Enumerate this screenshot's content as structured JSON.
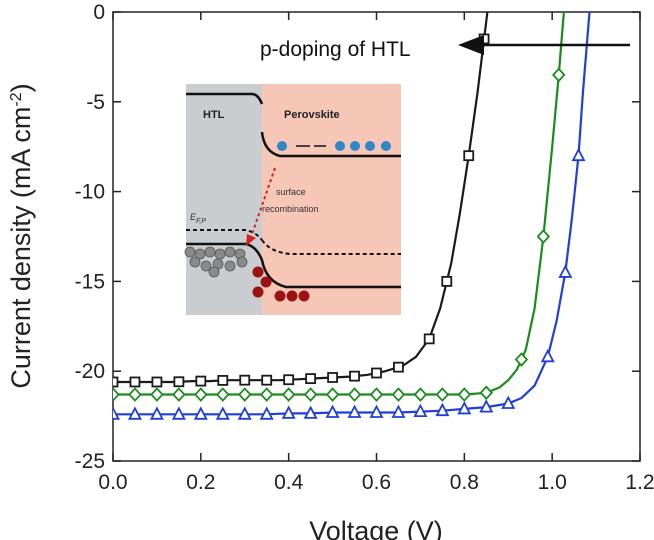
{
  "chart_data": {
    "type": "line",
    "xlabel": "Voltage (V)",
    "ylabel_main": "Current density (mA cm",
    "ylabel_sup": "-2",
    "ylabel_close": ")",
    "xlim": [
      0.0,
      1.2
    ],
    "ylim": [
      -25,
      0
    ],
    "x_ticks": [
      "0.0",
      "0.2",
      "0.4",
      "0.6",
      "0.8",
      "1.0",
      "1.2"
    ],
    "y_ticks": [
      "0",
      "-5",
      "-10",
      "-15",
      "-20",
      "-25"
    ],
    "grid": false,
    "annotation": "p-doping of HTL",
    "series": [
      {
        "color": "#1a1a1a",
        "marker": "square",
        "x": [
          0.0,
          0.02,
          0.06,
          0.1,
          0.14,
          0.18,
          0.22,
          0.26,
          0.3,
          0.34,
          0.38,
          0.42,
          0.46,
          0.5,
          0.54,
          0.58,
          0.62,
          0.66,
          0.69,
          0.72,
          0.745,
          0.77,
          0.79,
          0.81,
          0.83,
          0.845,
          0.855,
          0.865
        ],
        "y": [
          -20.6,
          -20.6,
          -20.6,
          -20.6,
          -20.6,
          -20.55,
          -20.55,
          -20.5,
          -20.5,
          -20.5,
          -20.5,
          -20.45,
          -20.4,
          -20.35,
          -20.3,
          -20.2,
          -20.0,
          -19.7,
          -19.2,
          -18.2,
          -16.5,
          -14.0,
          -11.2,
          -8.0,
          -4.5,
          -1.5,
          0.5,
          2.5
        ]
      },
      {
        "color": "#1a8c1a",
        "marker": "diamond",
        "x": [
          0.0,
          0.05,
          0.1,
          0.15,
          0.2,
          0.25,
          0.3,
          0.35,
          0.4,
          0.45,
          0.5,
          0.55,
          0.6,
          0.65,
          0.7,
          0.75,
          0.8,
          0.85,
          0.88,
          0.9,
          0.92,
          0.94,
          0.96,
          0.98,
          1.0,
          1.015,
          1.025,
          1.035
        ],
        "y": [
          -21.3,
          -21.3,
          -21.3,
          -21.3,
          -21.3,
          -21.3,
          -21.3,
          -21.3,
          -21.3,
          -21.3,
          -21.3,
          -21.3,
          -21.3,
          -21.3,
          -21.3,
          -21.3,
          -21.3,
          -21.2,
          -20.9,
          -20.5,
          -19.9,
          -18.8,
          -16.5,
          -12.5,
          -7.5,
          -3.5,
          -0.5,
          2.0
        ]
      },
      {
        "color": "#1f3fd8",
        "marker": "triangle",
        "x": [
          0.0,
          0.05,
          0.1,
          0.15,
          0.2,
          0.25,
          0.3,
          0.35,
          0.4,
          0.45,
          0.5,
          0.55,
          0.6,
          0.65,
          0.7,
          0.75,
          0.8,
          0.85,
          0.9,
          0.93,
          0.96,
          0.99,
          1.01,
          1.03,
          1.045,
          1.06,
          1.07,
          1.08,
          1.09
        ],
        "y": [
          -22.4,
          -22.4,
          -22.4,
          -22.4,
          -22.4,
          -22.4,
          -22.4,
          -22.4,
          -22.35,
          -22.35,
          -22.3,
          -22.3,
          -22.3,
          -22.3,
          -22.25,
          -22.2,
          -22.1,
          -22.0,
          -21.8,
          -21.5,
          -20.8,
          -19.2,
          -17.2,
          -14.5,
          -11.5,
          -8.0,
          -4.5,
          -1.5,
          1.5
        ]
      }
    ],
    "marker_x": {
      "square": [
        0.0,
        0.05,
        0.1,
        0.15,
        0.2,
        0.25,
        0.3,
        0.35,
        0.4,
        0.45,
        0.5,
        0.55,
        0.6,
        0.65,
        0.72,
        0.76,
        0.81,
        0.845
      ],
      "diamond": [
        0.0,
        0.05,
        0.1,
        0.15,
        0.2,
        0.25,
        0.3,
        0.35,
        0.4,
        0.45,
        0.5,
        0.55,
        0.6,
        0.65,
        0.7,
        0.75,
        0.8,
        0.85,
        0.93,
        0.98,
        1.015
      ],
      "triangle": [
        0.0,
        0.05,
        0.1,
        0.15,
        0.2,
        0.25,
        0.3,
        0.35,
        0.4,
        0.45,
        0.5,
        0.55,
        0.6,
        0.65,
        0.7,
        0.75,
        0.8,
        0.85,
        0.9,
        0.99,
        1.03,
        1.06
      ]
    }
  },
  "inset": {
    "left_label": "HTL",
    "right_label": "Perovskite",
    "recombination_label_1": "surface",
    "recombination_label_2": "recombination",
    "fermi_label": "E",
    "fermi_sub": "F,P",
    "colors": {
      "htl_bg": "#c9cdd0",
      "perovskite_bg": "#f6c6b6",
      "electron": "#2f86c8",
      "hole": "#9b1212",
      "arrow": "#d42020"
    }
  }
}
